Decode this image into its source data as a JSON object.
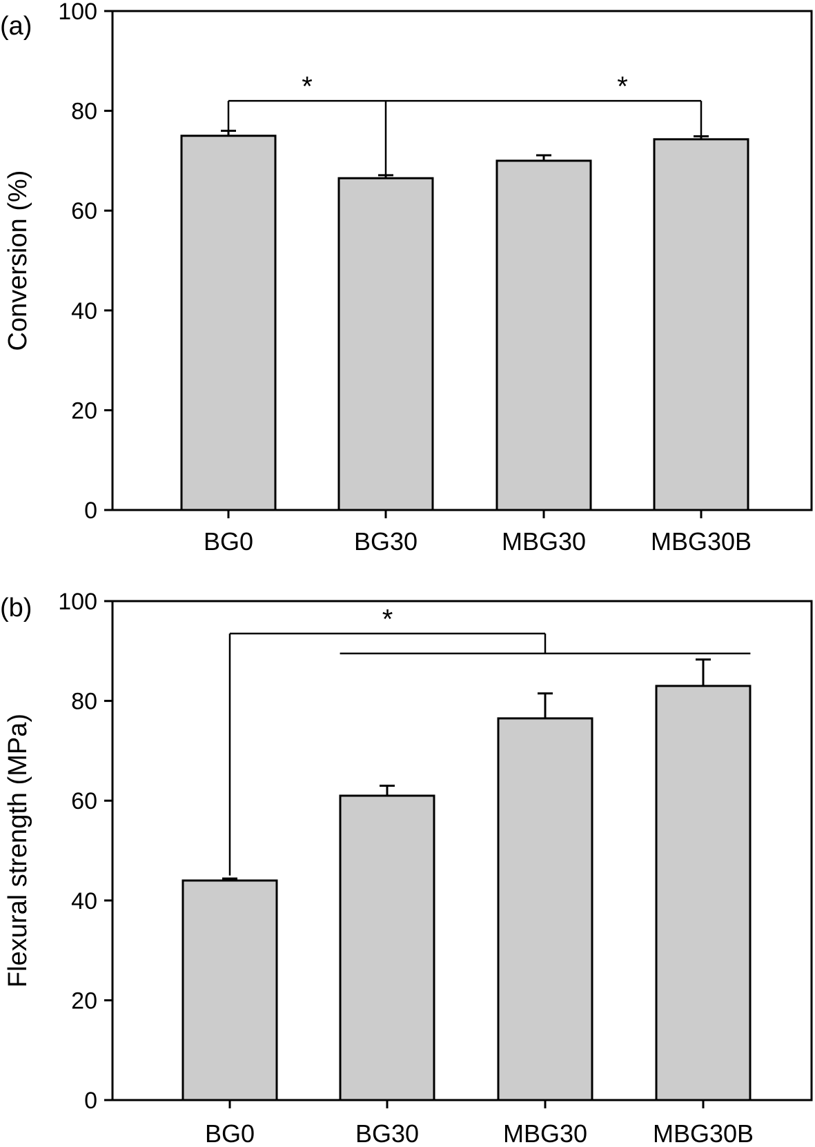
{
  "chart_data": [
    {
      "type": "bar",
      "panel_label": "(a)",
      "ylabel": "Conversion (%)",
      "xlabel": "",
      "ylim": [
        0,
        100
      ],
      "yticks": [
        0,
        20,
        40,
        60,
        80,
        100
      ],
      "categories": [
        "BG0",
        "BG30",
        "MBG30",
        "MBG30B"
      ],
      "values": [
        75,
        66.5,
        70,
        74.3
      ],
      "errors": [
        1.0,
        0.6,
        1.1,
        0.6
      ],
      "bar_color": "#cccccc",
      "grid": false,
      "significance": [
        {
          "type": "bracket",
          "from": 0,
          "to": 3,
          "level": 82,
          "drop_to": [
            75.8,
            74.8
          ],
          "stem": {
            "at": 1,
            "to": 67.0
          }
        },
        {
          "type": "star",
          "text": "*",
          "between": [
            0,
            1
          ],
          "value": 85
        },
        {
          "type": "star",
          "text": "*",
          "between": [
            2,
            3
          ],
          "value": 85
        }
      ]
    },
    {
      "type": "bar",
      "panel_label": "(b)",
      "ylabel": "Flexural strength (MPa)",
      "xlabel": "",
      "ylim": [
        0,
        100
      ],
      "yticks": [
        0,
        20,
        40,
        60,
        80,
        100
      ],
      "categories": [
        "BG0",
        "BG30",
        "MBG30",
        "MBG30B"
      ],
      "values": [
        44,
        61,
        76.5,
        83
      ],
      "errors": [
        0.4,
        2.0,
        5.0,
        5.3
      ],
      "bar_color": "#cccccc",
      "grid": false,
      "significance": [
        {
          "type": "bracket",
          "from": 0,
          "to": 2,
          "level": 93.5,
          "drop_to": [
            45.0,
            89.5
          ]
        },
        {
          "type": "line",
          "from": 0.7,
          "to": 3.3,
          "level": 89.5
        },
        {
          "type": "star",
          "text": "*",
          "between": [
            0,
            2
          ],
          "value": 96.5
        }
      ]
    }
  ]
}
